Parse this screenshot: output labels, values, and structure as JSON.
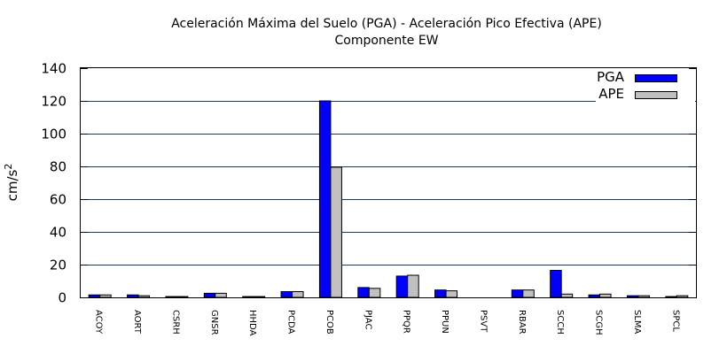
{
  "chart_data": {
    "type": "bar",
    "title": "Aceleración Máxima del Suelo (PGA) -  Aceleración Pico Efectiva (APE)",
    "subtitle": "Componente EW",
    "ylabel_base": "cm/s",
    "ylabel_exp": "2",
    "xlabel": "",
    "ylim": [
      0,
      140
    ],
    "yticks": [
      0,
      20,
      40,
      60,
      80,
      100,
      120,
      140
    ],
    "grid": true,
    "legend_position": "top-right",
    "categories": [
      "ACOY",
      "AORT",
      "CSRH",
      "GNSR",
      "HHDA",
      "PCDA",
      "PCOB",
      "PJAC",
      "PPQR",
      "PPUN",
      "PSVT",
      "RBAR",
      "SCCH",
      "SCGH",
      "SLMA",
      "SPCL"
    ],
    "series": [
      {
        "name": "PGA",
        "color": "#0000ff",
        "values": [
          1.5,
          1.5,
          0.5,
          2.5,
          0.5,
          3.5,
          120,
          6,
          13,
          4.5,
          0,
          4.5,
          16.5,
          1.5,
          1,
          0.5
        ]
      },
      {
        "name": "APE",
        "color": "#c0c0c0",
        "values": [
          1.5,
          1,
          0.5,
          2.5,
          0.5,
          3.5,
          79.5,
          5.5,
          13.5,
          4,
          0,
          4.5,
          2,
          2,
          1,
          1
        ]
      }
    ]
  }
}
